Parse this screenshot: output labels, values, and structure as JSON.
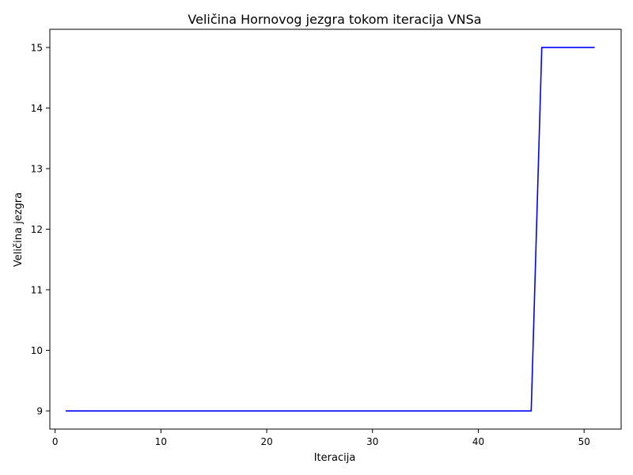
{
  "chart_data": {
    "type": "line",
    "title": "Veličina Hornovog jezgra tokom iteracija VNSa",
    "xlabel": "Iteracija",
    "ylabel": "Veličina jezgra",
    "xlim": [
      -0.5,
      53.5
    ],
    "ylim": [
      8.7,
      15.3
    ],
    "x_ticks": [
      0,
      10,
      20,
      30,
      40,
      50
    ],
    "y_ticks": [
      9,
      10,
      11,
      12,
      13,
      14,
      15
    ],
    "grid": false,
    "legend": "none",
    "series": [
      {
        "color": "#0000ff",
        "x": [
          1,
          2,
          3,
          4,
          5,
          6,
          7,
          8,
          9,
          10,
          11,
          12,
          13,
          14,
          15,
          16,
          17,
          18,
          19,
          20,
          21,
          22,
          23,
          24,
          25,
          26,
          27,
          28,
          29,
          30,
          31,
          32,
          33,
          34,
          35,
          36,
          37,
          38,
          39,
          40,
          41,
          42,
          43,
          44,
          45,
          46,
          47,
          48,
          49,
          50,
          51
        ],
        "values": [
          9,
          9,
          9,
          9,
          9,
          9,
          9,
          9,
          9,
          9,
          9,
          9,
          9,
          9,
          9,
          9,
          9,
          9,
          9,
          9,
          9,
          9,
          9,
          9,
          9,
          9,
          9,
          9,
          9,
          9,
          9,
          9,
          9,
          9,
          9,
          9,
          9,
          9,
          9,
          9,
          9,
          9,
          9,
          9,
          9,
          15,
          15,
          15,
          15,
          15,
          15
        ]
      }
    ]
  }
}
